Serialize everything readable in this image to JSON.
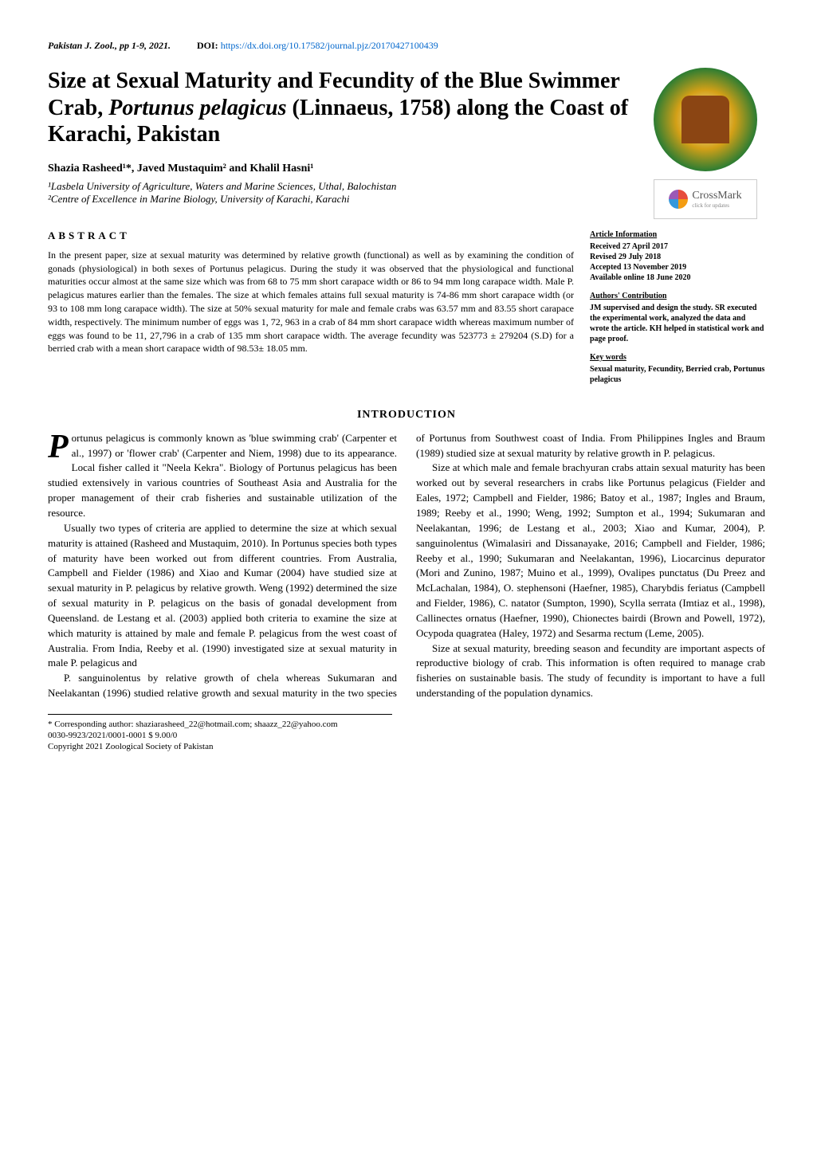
{
  "journal": {
    "name": "Pakistan J. Zool., pp 1-9, 2021.",
    "doi_label": "DOI:",
    "doi_url": "https://dx.doi.org/10.17582/journal.pjz/20170427100439"
  },
  "title": {
    "line1": "Size at Sexual Maturity and Fecundity of the Blue Swimmer Crab, ",
    "species": "Portunus pelagicus",
    "line2": " (Linnaeus, 1758) along the Coast of Karachi, Pakistan"
  },
  "badges": {
    "society_alt": "Zoological Society of Pakistan",
    "crossmark_label": "CrossMark",
    "crossmark_sub": "click for updates"
  },
  "authors": "Shazia Rasheed¹*, Javed Mustaquim² and Khalil Hasni¹",
  "affiliations": {
    "a1": "¹Lasbela University of Agriculture, Waters and Marine Sciences, Uthal, Balochistan",
    "a2": "²Centre of Excellence in Marine Biology, University of Karachi, Karachi"
  },
  "abstract": {
    "heading": "ABSTRACT",
    "text": "In the present paper, size at sexual maturity was determined by relative growth (functional) as well as by examining the condition of gonads (physiological) in both sexes of Portunus pelagicus. During the study it was observed that the physiological and functional maturities occur almost at the same size which was from 68 to 75 mm short carapace width or 86 to 94 mm long carapace width. Male P. pelagicus matures earlier than the females. The size at which females attains full sexual maturity is 74-86 mm short carapace width (or 93 to 108 mm long carapace width). The size at 50% sexual maturity for male and female crabs was 63.57 mm and 83.55 short carapace width, respectively. The minimum number of eggs was 1, 72, 963 in a crab of 84 mm short carapace width whereas maximum number of eggs was found to be 11, 27,796 in a crab of 135 mm short carapace width. The average fecundity was 523773 ± 279204 (S.D) for a berried crab with a mean short carapace width of 98.53± 18.05 mm."
  },
  "article_info": {
    "heading": "Article Information",
    "received": "Received 27 April 2017",
    "revised": "Revised 29 July 2018",
    "accepted": "Accepted 13 November 2019",
    "available": "Available online 18 June 2020"
  },
  "authors_contribution": {
    "heading": "Authors' Contribution",
    "text": "JM supervised and design the study. SR executed the experimental work, analyzed the data and wrote the article. KH helped in statistical work and page proof."
  },
  "keywords": {
    "heading": "Key words",
    "text": "Sexual maturity, Fecundity, Berried crab, Portunus pelagicus"
  },
  "intro": {
    "heading": "INTRODUCTION",
    "p1_dropcap": "P",
    "p1": "ortunus pelagicus is commonly known as 'blue swimming crab' (Carpenter et al., 1997) or 'flower crab' (Carpenter and Niem, 1998) due to its appearance. Local fisher called it \"Neela Kekra\". Biology of Portunus pelagicus has been studied extensively in various countries of Southeast Asia and Australia for the proper management of their crab fisheries and sustainable utilization of the resource.",
    "p2": "Usually two types of criteria are applied to determine the size at which sexual maturity is attained (Rasheed and Mustaquim, 2010). In Portunus species both types of maturity have been worked out from different countries. From Australia, Campbell and Fielder (1986) and Xiao and Kumar (2004) have studied size at sexual maturity in P. pelagicus by relative growth. Weng (1992) determined the size of sexual maturity in P. pelagicus on the basis of gonadal development from Queensland. de Lestang et al. (2003) applied both criteria to examine the size at which maturity is attained by male and female P. pelagicus from the west coast of Australia. From India, Reeby et al. (1990) investigated size at sexual maturity in male P. pelagicus and",
    "p3": "P. sanguinolentus by relative growth of chela whereas Sukumaran and Neelakantan (1996) studied relative growth and sexual maturity in the two species of Portunus from Southwest coast of India. From Philippines Ingles and Braum (1989) studied size at sexual maturity by relative growth in P. pelagicus.",
    "p4": "Size at which male and female brachyuran crabs attain sexual maturity has been worked out by several researchers in crabs like Portunus pelagicus (Fielder and Eales, 1972; Campbell and Fielder, 1986; Batoy et al., 1987; Ingles and Braum, 1989; Reeby et al., 1990; Weng, 1992; Sumpton et al., 1994; Sukumaran and Neelakantan, 1996; de Lestang et al., 2003; Xiao and Kumar, 2004), P. sanguinolentus (Wimalasiri and Dissanayake, 2016; Campbell and Fielder, 1986; Reeby et al., 1990; Sukumaran and Neelakantan, 1996), Liocarcinus depurator (Mori and Zunino, 1987; Muino et al., 1999), Ovalipes punctatus (Du Preez and McLachalan, 1984), O. stephensoni (Haefner, 1985), Charybdis feriatus (Campbell and Fielder, 1986), C. natator (Sumpton, 1990), Scylla serrata (Imtiaz et al., 1998), Callinectes ornatus (Haefner, 1990), Chionectes bairdi (Brown and Powell, 1972), Ocypoda quagratea (Haley, 1972) and Sesarma rectum (Leme, 2005).",
    "p5": "Size at sexual maturity, breeding season and fecundity are important aspects of reproductive biology of crab. This information is often required to manage crab fisheries on sustainable basis. The study of fecundity is important to have a full understanding of the population dynamics."
  },
  "footer": {
    "corresponding": "*       Corresponding author: shaziarasheed_22@hotmail.com; shaazz_22@yahoo.com",
    "issn": "0030-9923/2021/0001-0001 $ 9.00/0",
    "copyright": "Copyright 2021 Zoological Society of Pakistan"
  },
  "colors": {
    "link": "#0066cc",
    "text": "#000000",
    "background": "#ffffff"
  }
}
